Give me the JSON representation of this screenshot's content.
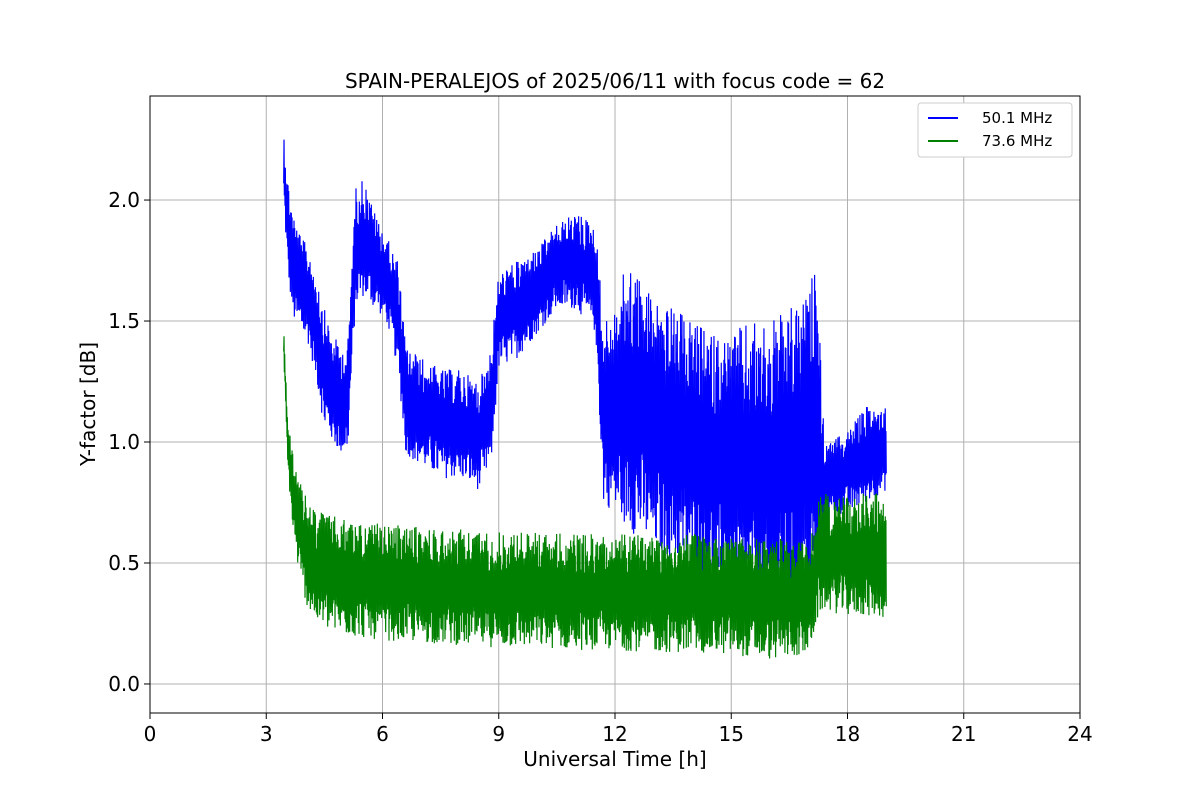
{
  "chart_data": {
    "type": "line",
    "title": "SPAIN-PERALEJOS of 2025/06/11 with focus code = 62",
    "xlabel": "Universal Time [h]",
    "ylabel": "Y-factor [dB]",
    "xlim": [
      0,
      24
    ],
    "ylim": [
      -0.12,
      2.43
    ],
    "xticks": [
      0,
      3,
      6,
      9,
      12,
      15,
      18,
      21,
      24
    ],
    "xtick_labels": [
      "0",
      "3",
      "6",
      "9",
      "12",
      "15",
      "18",
      "21",
      "24"
    ],
    "yticks": [
      0.0,
      0.5,
      1.0,
      1.5,
      2.0
    ],
    "ytick_labels": [
      "0.0",
      "0.5",
      "1.0",
      "1.5",
      "2.0"
    ],
    "grid": true,
    "legend_position": "top-right",
    "series": [
      {
        "name": "50.1 MHz",
        "color": "#0000ff",
        "x": [
          3.45,
          3.55,
          3.7,
          3.9,
          4.1,
          4.3,
          4.5,
          4.7,
          4.9,
          5.1,
          5.3,
          5.5,
          5.8,
          6.1,
          6.4,
          6.6,
          7.0,
          7.5,
          8.0,
          8.5,
          8.8,
          9.0,
          9.5,
          10.0,
          10.5,
          11.0,
          11.5,
          11.7,
          12.0,
          12.3,
          12.6,
          13.0,
          13.5,
          14.0,
          14.5,
          15.0,
          15.5,
          16.0,
          16.5,
          17.0,
          17.2,
          17.4,
          17.6,
          18.0,
          18.5,
          19.0
        ],
        "upper": [
          2.3,
          2.1,
          1.95,
          1.85,
          1.8,
          1.7,
          1.55,
          1.45,
          1.4,
          1.4,
          2.05,
          2.1,
          1.95,
          1.85,
          1.75,
          1.4,
          1.35,
          1.3,
          1.3,
          1.25,
          1.4,
          1.7,
          1.75,
          1.8,
          1.9,
          1.95,
          1.9,
          1.5,
          1.55,
          1.75,
          1.7,
          1.6,
          1.55,
          1.5,
          1.45,
          1.45,
          1.5,
          1.5,
          1.55,
          1.6,
          1.8,
          1.0,
          1.0,
          1.05,
          1.15,
          1.15
        ],
        "lower": [
          2.0,
          1.7,
          1.5,
          1.45,
          1.4,
          1.25,
          1.05,
          1.0,
          0.95,
          0.95,
          1.55,
          1.6,
          1.55,
          1.5,
          1.3,
          0.95,
          0.9,
          0.85,
          0.85,
          0.8,
          0.9,
          1.3,
          1.35,
          1.45,
          1.55,
          1.55,
          1.45,
          0.75,
          0.7,
          0.65,
          0.6,
          0.55,
          0.5,
          0.45,
          0.4,
          0.35,
          0.3,
          0.25,
          0.3,
          0.35,
          0.35,
          0.6,
          0.7,
          0.7,
          0.75,
          0.8
        ]
      },
      {
        "name": "73.6 MHz",
        "color": "#008000",
        "x": [
          3.45,
          3.55,
          3.7,
          3.9,
          4.1,
          4.3,
          4.6,
          5.0,
          6.0,
          7.0,
          8.0,
          9.0,
          10.0,
          11.0,
          12.0,
          13.0,
          14.0,
          15.0,
          16.0,
          17.0,
          17.3,
          17.5,
          18.0,
          18.5,
          19.0
        ],
        "upper": [
          1.5,
          1.1,
          0.95,
          0.82,
          0.75,
          0.72,
          0.7,
          0.68,
          0.66,
          0.65,
          0.64,
          0.63,
          0.63,
          0.62,
          0.62,
          0.62,
          0.62,
          0.61,
          0.6,
          0.6,
          0.8,
          0.78,
          0.78,
          0.8,
          0.8
        ],
        "lower": [
          1.35,
          0.9,
          0.6,
          0.4,
          0.3,
          0.25,
          0.22,
          0.2,
          0.18,
          0.17,
          0.16,
          0.15,
          0.15,
          0.14,
          0.14,
          0.13,
          0.13,
          0.12,
          0.1,
          0.12,
          0.3,
          0.3,
          0.28,
          0.28,
          0.27
        ]
      }
    ]
  }
}
